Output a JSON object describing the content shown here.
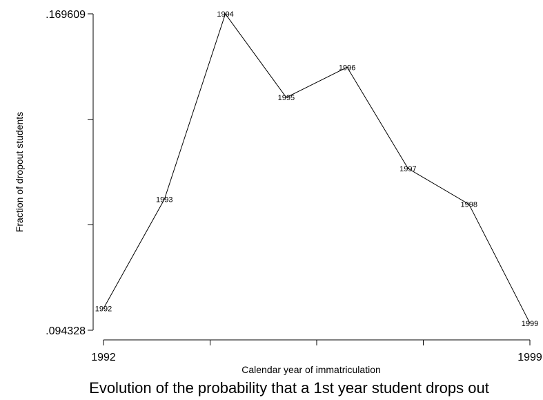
{
  "chart_data": {
    "type": "line",
    "title": "Evolution of the probability that a 1st year student drops out",
    "xlabel": "Calendar year of immatriculation",
    "ylabel": "Fraction of dropout students",
    "x": [
      1992,
      1993,
      1994,
      1995,
      1996,
      1997,
      1998,
      1999
    ],
    "y": [
      0.0995,
      0.1255,
      0.1696,
      0.1497,
      0.1569,
      0.1328,
      0.1243,
      0.096
    ],
    "point_labels": [
      "1992",
      "1993",
      "1994",
      "1995",
      "1996",
      "1997",
      "1998",
      "1999"
    ],
    "xlim": [
      1992,
      1999
    ],
    "ylim": [
      0.094328,
      0.169609
    ],
    "x_tick_labels": [
      "1992",
      "",
      "",
      "",
      "1999"
    ],
    "y_tick_labels": [
      ".169609",
      "",
      "",
      ".094328"
    ],
    "grid": false,
    "legend": "none"
  }
}
